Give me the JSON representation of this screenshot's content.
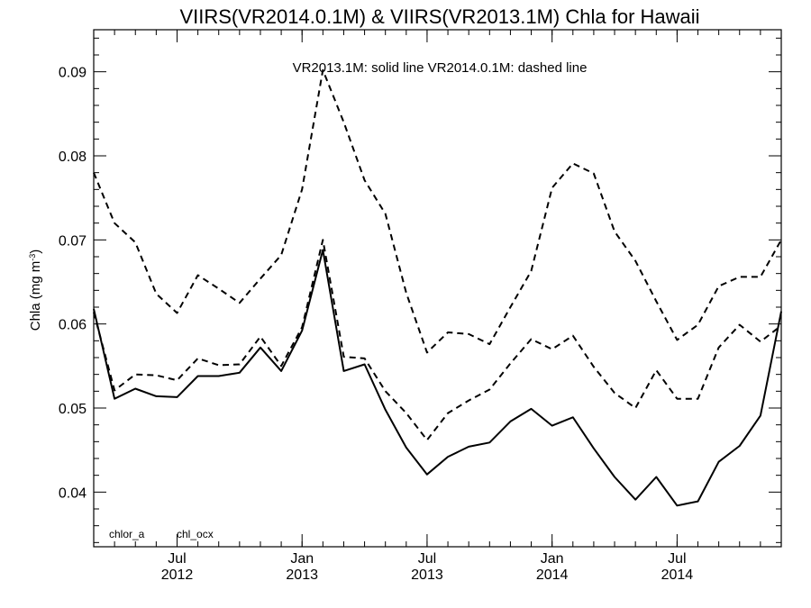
{
  "chart_data": {
    "type": "line",
    "title": "VIIRS(VR2014.0.1M) & VIIRS(VR2013.1M)  Chla for Hawaii",
    "annotation": "VR2013.1M: solid line   VR2014.0.1M: dashed line",
    "ylabel": "Chla (mg m",
    "ylabel_sup": "-3",
    "ylabel_close": ")",
    "ylim": [
      0.0335,
      0.095
    ],
    "xlim": [
      0,
      33
    ],
    "yticks": [
      {
        "value": 0.04,
        "label": "0.04"
      },
      {
        "value": 0.05,
        "label": "0.05"
      },
      {
        "value": 0.06,
        "label": "0.06"
      },
      {
        "value": 0.07,
        "label": "0.07"
      },
      {
        "value": 0.08,
        "label": "0.08"
      },
      {
        "value": 0.09,
        "label": "0.09"
      }
    ],
    "xticks": [
      {
        "value": 4,
        "line1": "Jul",
        "line2": "2012"
      },
      {
        "value": 10,
        "line1": "Jan",
        "line2": "2013"
      },
      {
        "value": 16,
        "line1": "Jul",
        "line2": "2013"
      },
      {
        "value": 22,
        "line1": "Jan",
        "line2": "2014"
      },
      {
        "value": 28,
        "line1": "Jul",
        "line2": "2014"
      }
    ],
    "legend_labels": [
      "chlor_a",
      "chl_ocx"
    ],
    "x": [
      0,
      1,
      2,
      3,
      4,
      5,
      6,
      7,
      8,
      9,
      10,
      11,
      12,
      13,
      14,
      15,
      16,
      17,
      18,
      19,
      20,
      21,
      22,
      23,
      24,
      25,
      26,
      27,
      28,
      29,
      30,
      31,
      32,
      33
    ],
    "series": [
      {
        "style": "solid",
        "values": [
          0.0618,
          0.0511,
          0.0523,
          0.0514,
          0.0513,
          0.0538,
          0.0538,
          0.0542,
          0.0572,
          0.0544,
          0.0592,
          0.0688,
          0.0544,
          0.0552,
          0.0498,
          0.0453,
          0.0421,
          0.0442,
          0.0454,
          0.0459,
          0.0484,
          0.0499,
          0.0479,
          0.0489,
          0.0452,
          0.0418,
          0.0391,
          0.0418,
          0.0384,
          0.0389,
          0.0436,
          0.0455,
          0.0491,
          0.0615
        ]
      },
      {
        "style": "dashed",
        "values": [
          0.0614,
          0.0521,
          0.054,
          0.0539,
          0.0533,
          0.0559,
          0.0551,
          0.0552,
          0.0585,
          0.055,
          0.0596,
          0.07,
          0.0561,
          0.0559,
          0.052,
          0.0494,
          0.0462,
          0.0494,
          0.0509,
          0.0522,
          0.0553,
          0.0582,
          0.057,
          0.0586,
          0.0549,
          0.0518,
          0.05,
          0.0545,
          0.0511,
          0.0511,
          0.0572,
          0.0599,
          0.0579,
          0.0598
        ]
      },
      {
        "style": "dashed",
        "values": [
          0.078,
          0.072,
          0.0697,
          0.0636,
          0.0613,
          0.0658,
          0.0642,
          0.0625,
          0.0654,
          0.0682,
          0.076,
          0.0902,
          0.084,
          0.0771,
          0.0731,
          0.0637,
          0.0566,
          0.059,
          0.0588,
          0.0576,
          0.062,
          0.0663,
          0.0762,
          0.0791,
          0.0779,
          0.071,
          0.0675,
          0.0627,
          0.0581,
          0.0599,
          0.0645,
          0.0656,
          0.0656,
          0.07
        ]
      }
    ]
  }
}
